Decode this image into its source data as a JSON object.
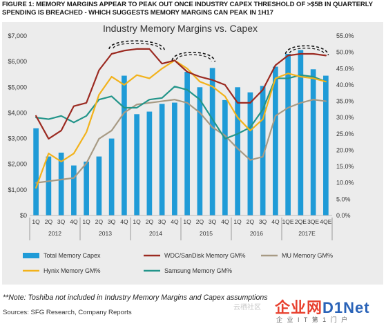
{
  "figure_title": "FIGURE 1: MEMORY MARGINS APPEAR TO PEAK OUT ONCE INDUSTRY CAPEX THRESHOLD OF >$5B IN QUARTERLY SPENDING IS BREACHED - WHICH SUGGESTS MEMORY MARGINS CAN PEAK IN 1H17",
  "note": "**Note: Toshiba not included in Industry Memory Margins and Capex assumptions",
  "sources": "Sources: SFG Research, Company Reports",
  "watermark": {
    "cn": "云栖社区",
    "logo_a": "企业网",
    "logo_b": "D1Net",
    "sub": "企 业 I T 第 1 门 户"
  },
  "colors": {
    "panel": "#ececec",
    "capex": "#1f9bd7",
    "wdc": "#9b2a21",
    "mu": "#a79a84",
    "hynix": "#f2b21b",
    "samsung": "#23958a"
  },
  "chart_data": {
    "type": "bar+line",
    "title": "Industry Memory Margins vs. Capex",
    "categories": [
      "1Q",
      "2Q",
      "3Q",
      "4Q",
      "1Q",
      "2Q",
      "3Q",
      "4Q",
      "1Q",
      "2Q",
      "3Q",
      "4Q",
      "1Q",
      "2Q",
      "3Q",
      "4Q",
      "1Q",
      "2Q",
      "3Q",
      "4Q",
      "1QE",
      "2QE",
      "3QE",
      "4QE"
    ],
    "groups": [
      {
        "label": "2012",
        "from": 0,
        "to": 3
      },
      {
        "label": "2013",
        "from": 4,
        "to": 7
      },
      {
        "label": "2014",
        "from": 8,
        "to": 11
      },
      {
        "label": "2015",
        "from": 12,
        "to": 15
      },
      {
        "label": "2016",
        "from": 16,
        "to": 19
      },
      {
        "label": "2017E",
        "from": 20,
        "to": 23
      }
    ],
    "y_left": {
      "min": 0,
      "max": 7000,
      "ticks": [
        "$0",
        "$1,000",
        "$2,000",
        "$3,000",
        "$4,000",
        "$5,000",
        "$6,000",
        "$7,000"
      ]
    },
    "y_right": {
      "min": 0,
      "max": 55,
      "ticks": [
        "0.0%",
        "5.0%",
        "10.0%",
        "15.0%",
        "20.0%",
        "25.0%",
        "30.0%",
        "35.0%",
        "40.0%",
        "45.0%",
        "50.0%",
        "55.0%"
      ]
    },
    "bars": {
      "name": "Total Memory Capex",
      "values": [
        3400,
        2300,
        2450,
        1950,
        2100,
        2300,
        3000,
        5450,
        3950,
        4050,
        4350,
        4400,
        5600,
        5000,
        5750,
        4500,
        5000,
        4800,
        5050,
        5800,
        6300,
        6450,
        5700,
        5450
      ]
    },
    "series": [
      {
        "name": "WDC/SanDisk Memory GM%",
        "key": "wdc",
        "values": [
          30.5,
          23.5,
          26.0,
          33.5,
          34.5,
          44.5,
          49.5,
          50.5,
          51.0,
          51.0,
          46.5,
          47.5,
          44.0,
          42.5,
          41.5,
          40.0,
          34.5,
          34.5,
          38.5,
          46.0,
          49.0,
          49.5,
          49.5,
          49.0
        ]
      },
      {
        "name": "MU Memory GM%",
        "key": "mu",
        "values": [
          10.0,
          10.5,
          11.0,
          11.5,
          16.0,
          23.5,
          26.0,
          31.5,
          34.0,
          34.5,
          35.0,
          35.5,
          34.5,
          31.5,
          27.0,
          24.5,
          20.5,
          17.0,
          18.0,
          30.5,
          33.0,
          34.5,
          35.5,
          35.0
        ]
      },
      {
        "name": "Hynix Memory GM%",
        "key": "hynix",
        "values": [
          8.5,
          19.0,
          16.5,
          19.0,
          25.5,
          37.0,
          42.5,
          40.0,
          43.0,
          42.0,
          45.0,
          47.5,
          45.0,
          41.0,
          39.5,
          36.5,
          30.0,
          26.0,
          29.5,
          42.0,
          43.5,
          42.5,
          42.0,
          41.0
        ]
      },
      {
        "name": "Samsung Memory GM%",
        "key": "samsung",
        "values": [
          30.0,
          29.5,
          30.5,
          28.5,
          30.5,
          35.5,
          36.5,
          33.0,
          33.0,
          35.5,
          36.0,
          39.5,
          38.5,
          35.5,
          29.5,
          23.5,
          25.0,
          27.0,
          32.5,
          42.0,
          42.0,
          43.0,
          42.5,
          41.0
        ]
      }
    ],
    "legend": [
      {
        "name": "Total Memory Capex",
        "key": "capex",
        "type": "bar"
      },
      {
        "name": "WDC/SanDisk Memory GM%",
        "key": "wdc",
        "type": "line"
      },
      {
        "name": "MU Memory GM%",
        "key": "mu",
        "type": "line"
      },
      {
        "name": "Hynix Memory GM%",
        "key": "hynix",
        "type": "line"
      },
      {
        "name": "Samsung Memory GM%",
        "key": "samsung",
        "type": "line"
      }
    ],
    "legend_position": "bottom",
    "peak_markers": [
      {
        "from": 6,
        "to": 10
      },
      {
        "from": 11,
        "to": 14
      },
      {
        "from": 20,
        "to": 23
      }
    ],
    "grid": false
  }
}
